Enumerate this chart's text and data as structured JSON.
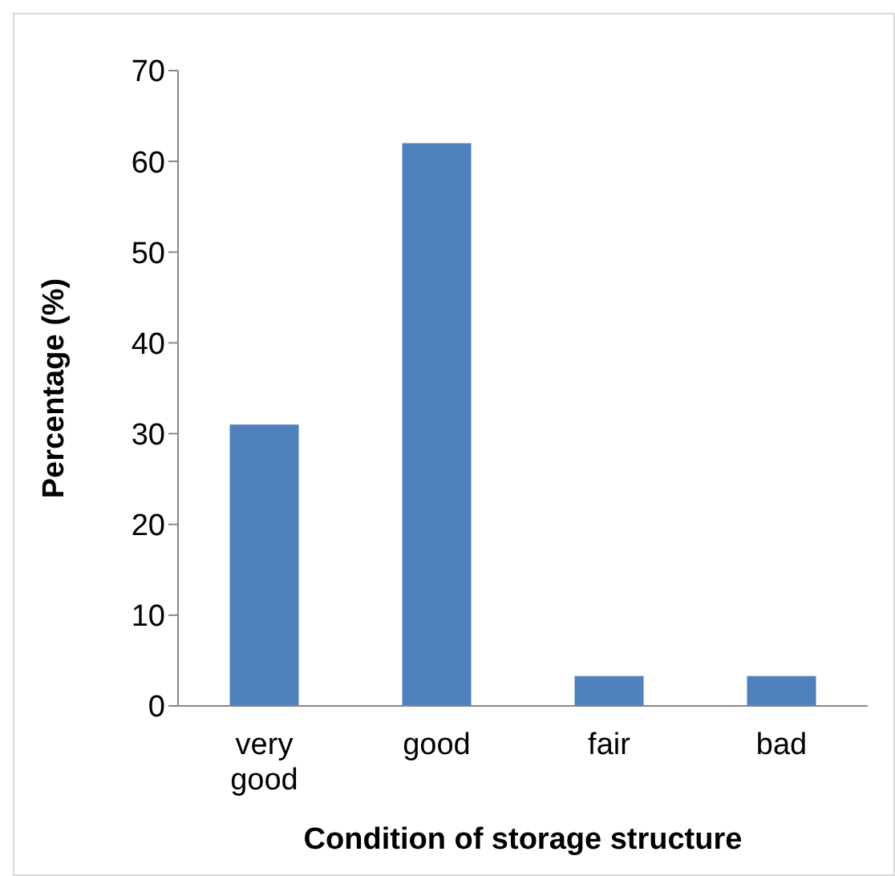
{
  "chart_data": {
    "type": "bar",
    "xlabel": "Condition of storage structure",
    "ylabel": "Percentage (%)",
    "categories": [
      "very good",
      "good",
      "fair",
      "bad"
    ],
    "values": [
      31,
      62,
      3.3,
      3.3
    ],
    "color": "#4f81bd",
    "ylim": [
      0,
      70
    ],
    "yticks": [
      0,
      10,
      20,
      30,
      40,
      50,
      60,
      70
    ],
    "grid": false,
    "legend": false
  }
}
